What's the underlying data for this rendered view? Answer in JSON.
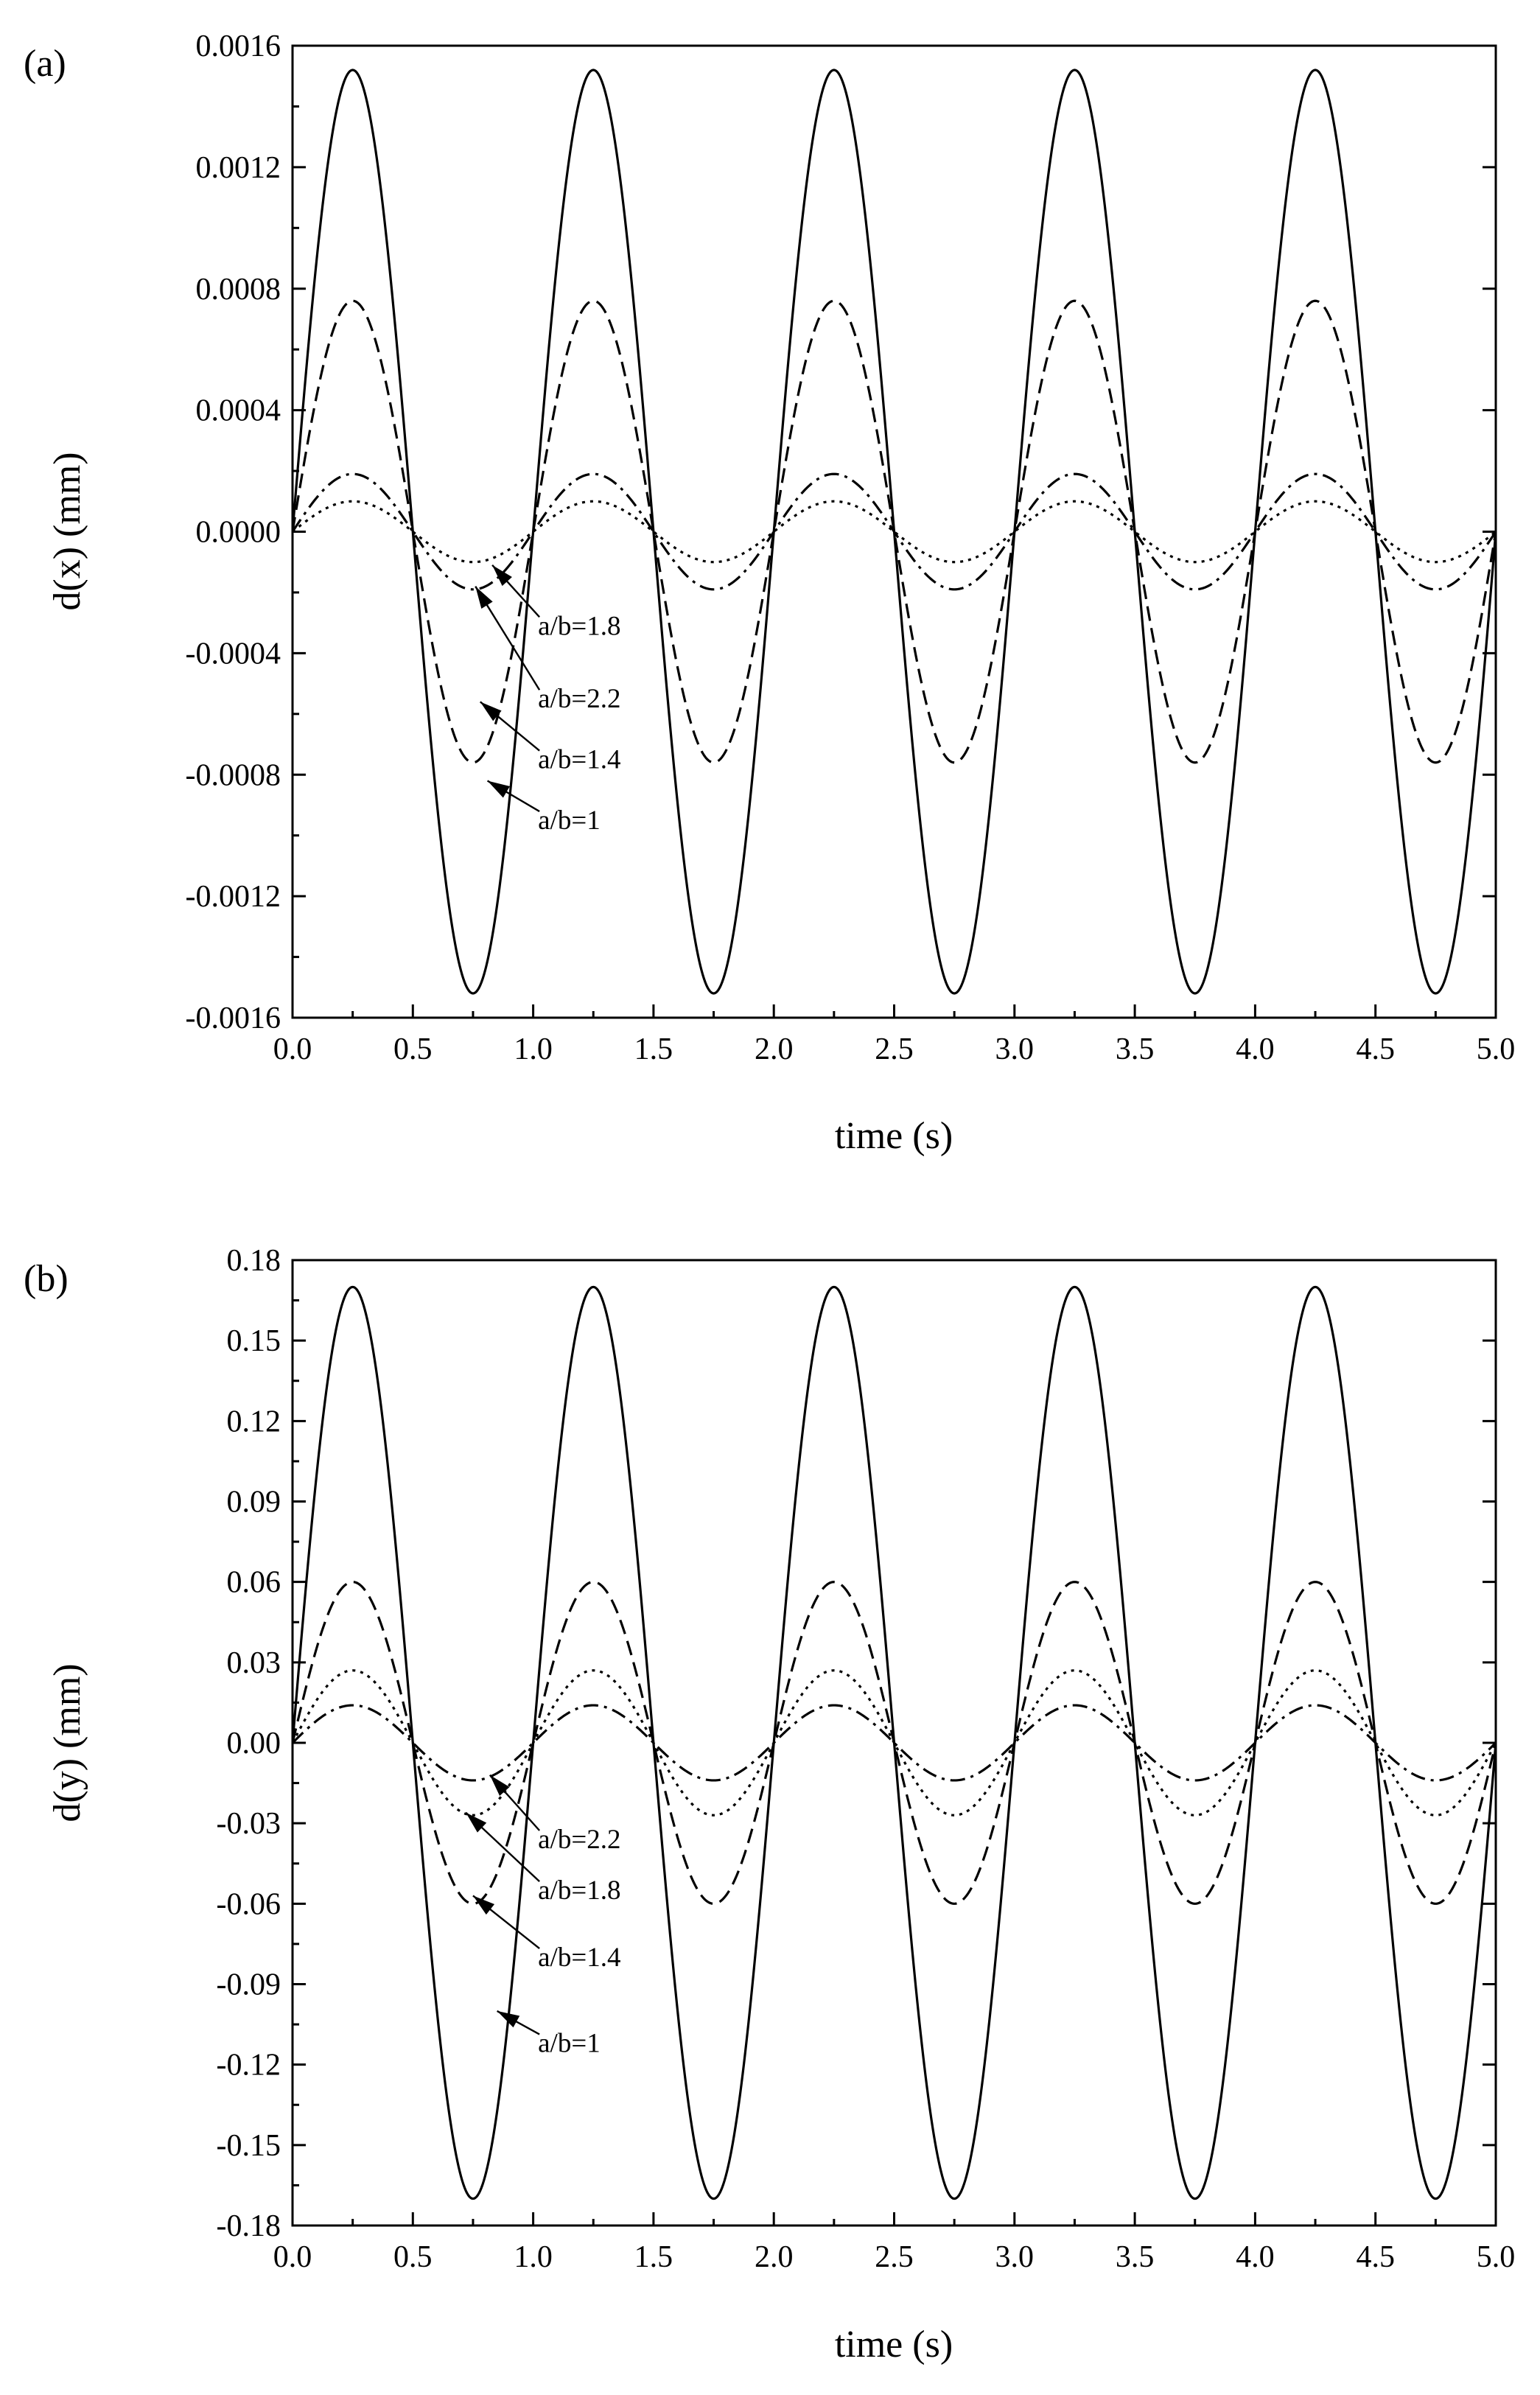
{
  "chart_data": [
    {
      "type": "line",
      "panel_label": "(a)",
      "xlabel": "time (s)",
      "ylabel": "d(x) (mm)",
      "xlim": [
        0,
        5
      ],
      "ylim": [
        -0.0016,
        0.0016
      ],
      "xticks": [
        0,
        0.5,
        1,
        1.5,
        2,
        2.5,
        3,
        3.5,
        4,
        4.5,
        5
      ],
      "xtick_labels": [
        "0.0",
        "0.5",
        "1.0",
        "1.5",
        "2.0",
        "2.5",
        "3.0",
        "3.5",
        "4.0",
        "4.5",
        "5.0"
      ],
      "yticks": [
        0.0016,
        0.0012,
        0.0008,
        0.0004,
        0,
        -0.0004,
        -0.0008,
        -0.0012,
        -0.0016
      ],
      "ytick_labels": [
        "0.0016",
        "0.0012",
        "0.0008",
        "0.0004",
        "0.0000",
        "-0.0004",
        "-0.0008",
        "-0.0012",
        "-0.0016"
      ],
      "grid": false,
      "function": "amplitude * sin(2*pi*t), period 1 s",
      "series": [
        {
          "name": "a/b=1",
          "style": "solid",
          "amplitude": 0.00152
        },
        {
          "name": "a/b=1.4",
          "style": "dashed",
          "amplitude": 0.00076
        },
        {
          "name": "a/b=1.8",
          "style": "dashdot",
          "amplitude": 0.00019
        },
        {
          "name": "a/b=2.2",
          "style": "dotted",
          "amplitude": 0.0001
        }
      ],
      "annotations": [
        {
          "text": "a/b=1.8",
          "target_series": "a/b=1.8",
          "target": [
            0.83,
            -0.00011
          ],
          "text_at": [
            1.02,
            -0.00031
          ]
        },
        {
          "text": "a/b=2.2",
          "target_series": "a/b=2.2",
          "target": [
            0.76,
            -0.00018
          ],
          "text_at": [
            1.02,
            -0.00055
          ]
        },
        {
          "text": "a/b=1.4",
          "target_series": "a/b=1.4",
          "target": [
            0.78,
            -0.00056
          ],
          "text_at": [
            1.02,
            -0.00075
          ]
        },
        {
          "text": "a/b=1",
          "target_series": "a/b=1",
          "target": [
            0.81,
            -0.00082
          ],
          "text_at": [
            1.02,
            -0.00095
          ]
        }
      ]
    },
    {
      "type": "line",
      "panel_label": "(b)",
      "xlabel": "time (s)",
      "ylabel": "d(y) (mm)",
      "xlim": [
        0,
        5
      ],
      "ylim": [
        -0.18,
        0.18
      ],
      "xticks": [
        0,
        0.5,
        1,
        1.5,
        2,
        2.5,
        3,
        3.5,
        4,
        4.5,
        5
      ],
      "xtick_labels": [
        "0.0",
        "0.5",
        "1.0",
        "1.5",
        "2.0",
        "2.5",
        "3.0",
        "3.5",
        "4.0",
        "4.5",
        "5.0"
      ],
      "yticks": [
        0.18,
        0.15,
        0.12,
        0.09,
        0.06,
        0.03,
        0,
        -0.03,
        -0.06,
        -0.09,
        -0.12,
        -0.15,
        -0.18
      ],
      "ytick_labels": [
        "0.18",
        "0.15",
        "0.12",
        "0.09",
        "0.06",
        "0.03",
        "0.00",
        "-0.03",
        "-0.06",
        "-0.09",
        "-0.12",
        "-0.15",
        "-0.18"
      ],
      "grid": false,
      "function": "amplitude * sin(2*pi*t), period 1 s",
      "series": [
        {
          "name": "a/b=1",
          "style": "solid",
          "amplitude": 0.17
        },
        {
          "name": "a/b=1.4",
          "style": "dashed",
          "amplitude": 0.06
        },
        {
          "name": "a/b=1.8",
          "style": "dotted",
          "amplitude": 0.027
        },
        {
          "name": "a/b=2.2",
          "style": "dashdot",
          "amplitude": 0.014
        }
      ],
      "annotations": [
        {
          "text": "a/b=2.2",
          "target_series": "a/b=2.2",
          "target": [
            0.82,
            -0.012
          ],
          "text_at": [
            1.02,
            -0.036
          ]
        },
        {
          "text": "a/b=1.8",
          "target_series": "a/b=1.8",
          "target": [
            0.72,
            -0.026
          ],
          "text_at": [
            1.02,
            -0.055
          ]
        },
        {
          "text": "a/b=1.4",
          "target_series": "a/b=1.4",
          "target": [
            0.75,
            -0.057
          ],
          "text_at": [
            1.02,
            -0.08
          ]
        },
        {
          "text": "a/b=1",
          "target_series": "a/b=1",
          "target": [
            0.85,
            -0.1
          ],
          "text_at": [
            1.02,
            -0.112
          ]
        }
      ]
    }
  ]
}
